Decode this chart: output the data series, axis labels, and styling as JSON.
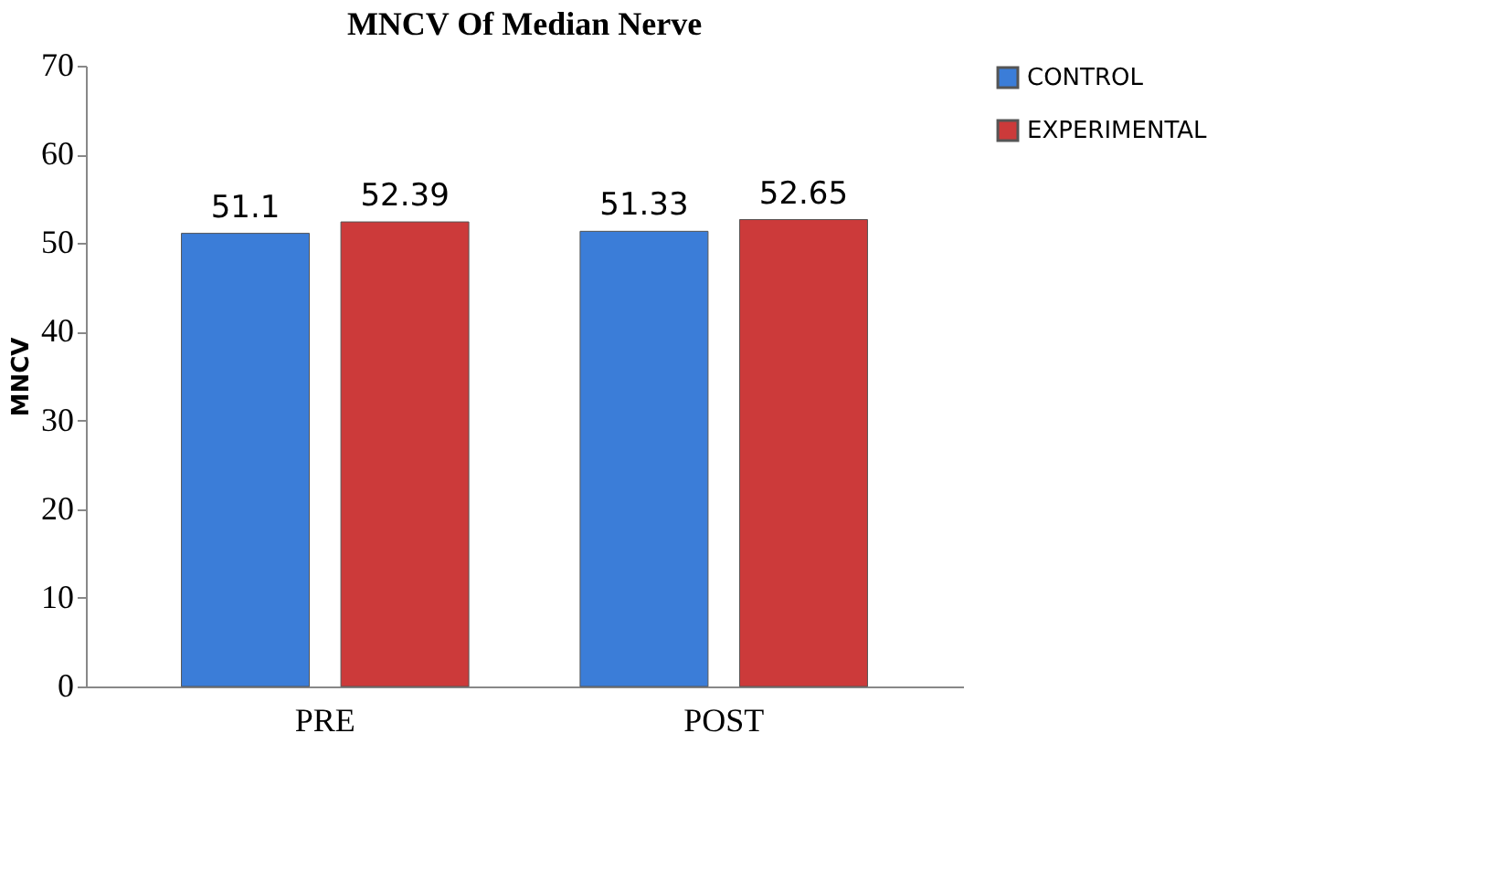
{
  "chart_data": {
    "type": "bar",
    "title": "MNCV Of Median Nerve",
    "ylabel": "MNCV",
    "categories": [
      "PRE",
      "POST"
    ],
    "series": [
      {
        "name": "CONTROL",
        "color": "#3b7dd8",
        "values": [
          51.1,
          51.33
        ]
      },
      {
        "name": "EXPERIMENTAL",
        "color": "#cc3a3a",
        "values": [
          52.39,
          52.65
        ]
      }
    ],
    "ylim": [
      0,
      70
    ],
    "yticks": [
      0,
      10,
      20,
      30,
      40,
      50,
      60,
      70
    ],
    "grid": false,
    "legend": "top right",
    "data_labels": true
  }
}
